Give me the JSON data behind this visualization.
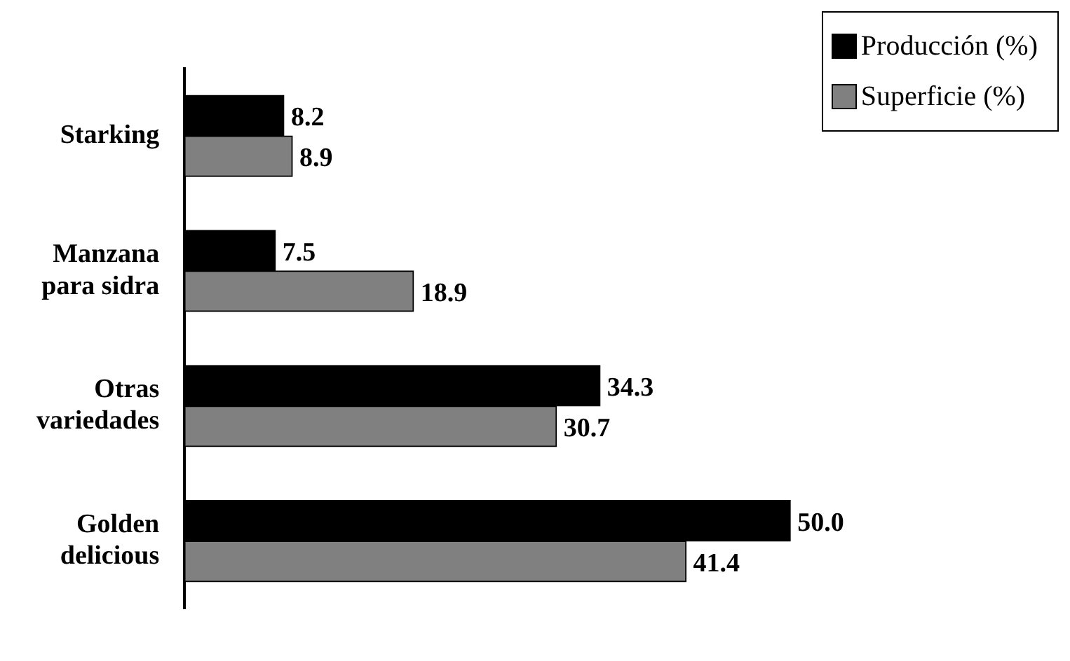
{
  "chart_data": {
    "type": "bar",
    "orientation": "horizontal",
    "categories": [
      "Starking",
      "Manzana para sidra",
      "Otras variedades",
      "Golden delicious"
    ],
    "legend": "top right",
    "series": [
      {
        "name": "Producción (%)",
        "color": "#000000",
        "values": [
          8.2,
          7.5,
          34.3,
          50.0
        ],
        "value_labels": [
          "8.2",
          "7.5",
          "34.3",
          "50.0"
        ]
      },
      {
        "name": "Superficie (%)",
        "color": "#808080",
        "values": [
          8.9,
          18.9,
          30.7,
          41.4
        ],
        "value_labels": [
          "8.9",
          "18.9",
          "30.7",
          "41.4"
        ]
      }
    ]
  }
}
